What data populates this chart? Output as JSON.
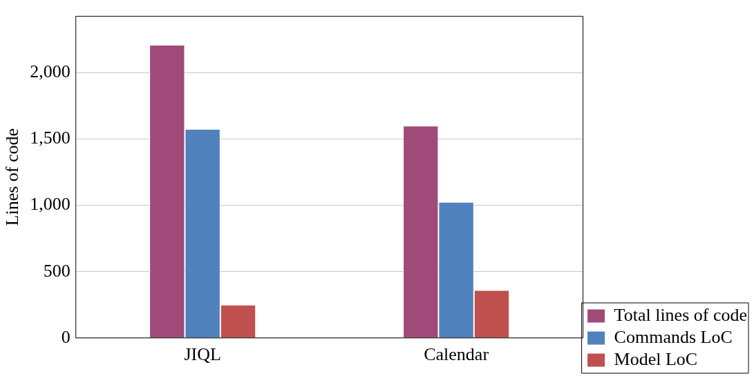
{
  "chart_data": {
    "type": "bar",
    "ylabel": "Lines of code",
    "categories": [
      "JIQL",
      "Calendar"
    ],
    "series": [
      {
        "name": "Total lines of code",
        "color": "#a04a7a",
        "values": [
          2210,
          1600
        ]
      },
      {
        "name": "Commands LoC",
        "color": "#4f81bd",
        "values": [
          1575,
          1025
        ]
      },
      {
        "name": "Model LoC",
        "color": "#c0504d",
        "values": [
          250,
          360
        ]
      }
    ],
    "ylim": [
      0,
      2425
    ],
    "yticks": [
      0,
      {
        "value": 500,
        "label": "500"
      },
      {
        "value": 1000,
        "label": "1,000"
      },
      {
        "value": 1500,
        "label": "1,500"
      },
      {
        "value": 2000,
        "label": "2,000"
      }
    ],
    "grid": "y",
    "legend": "bottom right"
  }
}
